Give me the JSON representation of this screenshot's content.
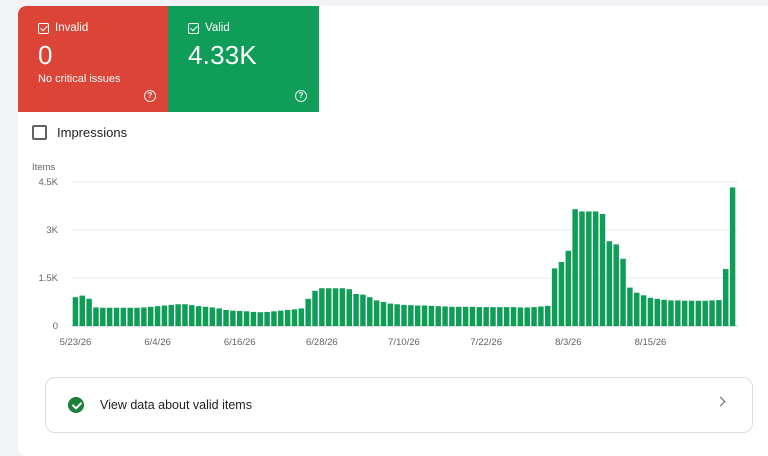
{
  "tiles": {
    "invalid": {
      "label": "Invalid",
      "value": "0",
      "subtitle": "No critical issues",
      "help_icon": "help-circle-icon",
      "color": "#db4437"
    },
    "valid": {
      "label": "Valid",
      "value": "4.33K",
      "help_icon": "help-circle-icon",
      "color": "#0f9d58"
    }
  },
  "impressions": {
    "label": "Impressions",
    "checked": false
  },
  "chart_data": {
    "type": "bar",
    "ylabel": "Items",
    "ylim": [
      0,
      4500
    ],
    "yticks": [
      0,
      1500,
      3000,
      4500
    ],
    "ytick_labels": [
      "0",
      "1.5K",
      "3K",
      "4.5K"
    ],
    "xtick_labels": [
      "5/23/26",
      "6/4/26",
      "6/16/26",
      "6/28/26",
      "7/10/26",
      "7/22/26",
      "8/3/26",
      "8/15/26"
    ],
    "xtick_indices": [
      0,
      12,
      24,
      36,
      48,
      60,
      72,
      84
    ],
    "bar_color": "#0f9d58",
    "grid": true,
    "values": [
      900,
      950,
      850,
      580,
      570,
      570,
      570,
      570,
      570,
      570,
      580,
      600,
      620,
      640,
      660,
      680,
      680,
      650,
      620,
      600,
      580,
      550,
      500,
      480,
      470,
      460,
      440,
      430,
      440,
      460,
      480,
      500,
      520,
      550,
      850,
      1100,
      1180,
      1180,
      1180,
      1180,
      1150,
      1000,
      980,
      900,
      800,
      750,
      700,
      680,
      660,
      650,
      640,
      640,
      630,
      620,
      610,
      600,
      600,
      600,
      600,
      590,
      590,
      590,
      590,
      590,
      590,
      580,
      580,
      590,
      610,
      630,
      1800,
      2000,
      2350,
      3650,
      3580,
      3580,
      3580,
      3500,
      2650,
      2550,
      2100,
      1200,
      1040,
      960,
      880,
      850,
      820,
      800,
      800,
      790,
      790,
      790,
      790,
      800,
      810,
      1780,
      4330
    ]
  },
  "footer_row": {
    "label": "View data about valid items",
    "icon": "check-circle-icon",
    "chevron": "chevron-right-icon"
  }
}
